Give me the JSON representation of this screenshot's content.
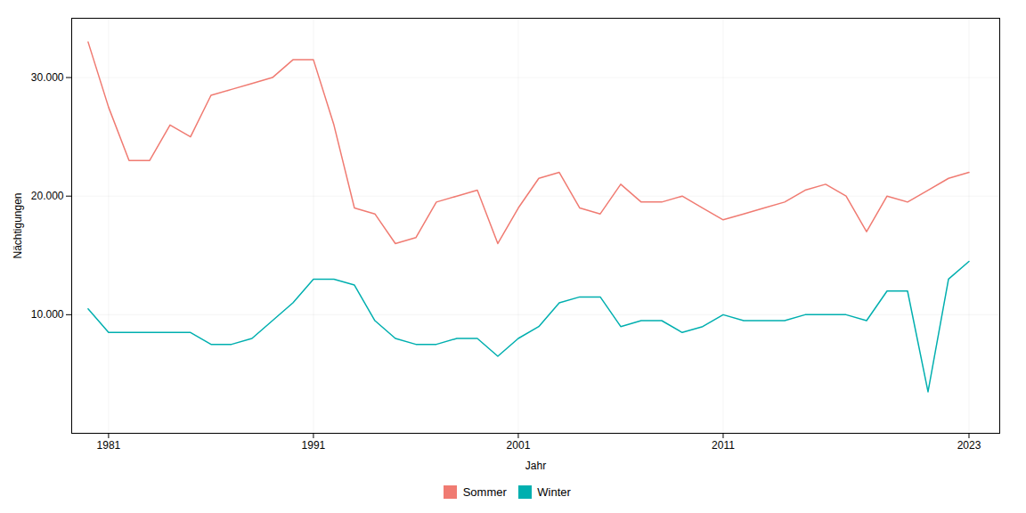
{
  "chart_data": {
    "type": "line",
    "x": [
      1980,
      1981,
      1982,
      1983,
      1984,
      1985,
      1986,
      1987,
      1988,
      1989,
      1990,
      1991,
      1992,
      1993,
      1994,
      1995,
      1996,
      1997,
      1998,
      1999,
      2000,
      2001,
      2002,
      2003,
      2004,
      2005,
      2006,
      2007,
      2008,
      2009,
      2010,
      2011,
      2012,
      2013,
      2014,
      2015,
      2016,
      2017,
      2018,
      2019,
      2020,
      2021,
      2022,
      2023
    ],
    "series": [
      {
        "name": "Sommer",
        "color": "#F07B72",
        "values": [
          33000,
          27500,
          23000,
          23000,
          26000,
          25000,
          28500,
          29000,
          29500,
          30000,
          31500,
          31500,
          26000,
          19000,
          18500,
          16000,
          16500,
          19500,
          20000,
          20500,
          16000,
          19000,
          21500,
          22000,
          19000,
          18500,
          21000,
          19500,
          19500,
          20000,
          19000,
          18000,
          18500,
          19000,
          19500,
          20500,
          21000,
          20000,
          17000,
          20000,
          19500,
          20500,
          21500,
          22000
        ]
      },
      {
        "name": "Winter",
        "color": "#00AFAF",
        "values": [
          10500,
          8500,
          8500,
          8500,
          8500,
          8500,
          7500,
          7500,
          8000,
          9500,
          11000,
          13000,
          13000,
          12500,
          9500,
          8000,
          7500,
          7500,
          8000,
          8000,
          6500,
          8000,
          9000,
          11000,
          11500,
          11500,
          9000,
          9500,
          9500,
          8500,
          9000,
          10000,
          9500,
          9500,
          9500,
          10000,
          10000,
          10000,
          9500,
          12000,
          12000,
          3500,
          13000,
          14500
        ]
      }
    ],
    "x_label": "Jahr",
    "y_label": "Nächtigungen",
    "xlim": [
      1979.2,
      2024.5
    ],
    "xticks": [
      1981,
      1991,
      2001,
      2011,
      2023
    ],
    "ylim": [
      0,
      35000
    ],
    "yticks": [
      {
        "value": 10000,
        "label": "10.000"
      },
      {
        "value": 20000,
        "label": "20.000"
      },
      {
        "value": 30000,
        "label": "30.000"
      }
    ],
    "grid": true,
    "legend": "bottom"
  }
}
